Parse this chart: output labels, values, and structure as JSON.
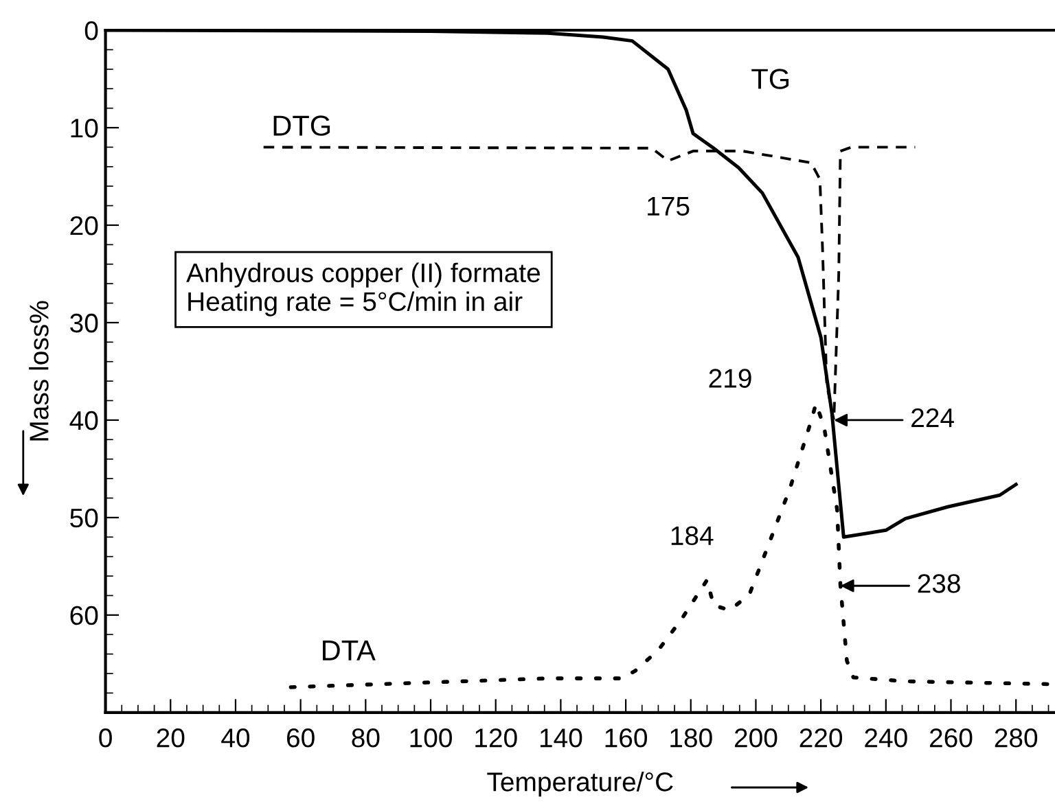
{
  "chart_data": {
    "type": "line",
    "xlabel": "Temperature/°C",
    "ylabel": "Mass loss%",
    "xlim": [
      0,
      292
    ],
    "ylim": [
      70,
      0
    ],
    "xticks": [
      0,
      20,
      40,
      60,
      80,
      100,
      120,
      140,
      160,
      180,
      200,
      220,
      240,
      260,
      280
    ],
    "yticks": [
      0,
      10,
      20,
      30,
      40,
      50,
      60
    ],
    "grid": false,
    "marker": "none",
    "series": [
      {
        "name": "TG",
        "color": "#000000",
        "line_style": "solid",
        "x": [
          0,
          100,
          136,
          153,
          162,
          173,
          178.6,
          180.7,
          187,
          194.7,
          202,
          213,
          220,
          223.4,
          227,
          240,
          246,
          259,
          275,
          280
        ],
        "values": [
          0,
          0.1,
          0.3,
          0.7,
          1.1,
          4,
          8.2,
          10.6,
          12.1,
          14.1,
          16.7,
          23.3,
          31.5,
          39.3,
          52,
          51.3,
          50.1,
          48.9,
          47.7,
          46.6
        ]
      },
      {
        "name": "DTG",
        "color": "#000000",
        "line_style": "dashed",
        "x": [
          48.6,
          168,
          173,
          180.7,
          196,
          217,
          219.7,
          220.5,
          221.8,
          224,
          225.5,
          226,
          229.4,
          249
        ],
        "values": [
          12,
          12.1,
          13.4,
          12.4,
          12.4,
          13.6,
          15.3,
          22.3,
          36.4,
          40,
          25,
          12.4,
          12,
          12
        ]
      },
      {
        "name": "DTA",
        "color": "#000000",
        "line_style": "dotted",
        "x": [
          57,
          136,
          159,
          163,
          170,
          177,
          185,
          187,
          192,
          198,
          204,
          210.5,
          217,
          218.5,
          221,
          225,
          226,
          228,
          230,
          246,
          292
        ],
        "values": [
          67.4,
          66.5,
          66.5,
          65.7,
          63.6,
          60.5,
          56.4,
          59,
          59.5,
          57.9,
          52.7,
          47,
          40.1,
          38.3,
          40.7,
          49.2,
          56.9,
          64.7,
          66.4,
          66.8,
          67.1
        ]
      }
    ],
    "annotations": [
      {
        "text": "175",
        "x": 173,
        "y": 13.4
      },
      {
        "text": "184",
        "x": 185,
        "y": 56.4
      },
      {
        "text": "219",
        "x": 218.5,
        "y": 38.3
      },
      {
        "text": "224",
        "x": 224,
        "y": 40
      },
      {
        "text": "238",
        "x": 226,
        "y": 57
      },
      "Anhydrous copper (II) formate\nHeating rate = 5°C/min in air"
    ]
  }
}
